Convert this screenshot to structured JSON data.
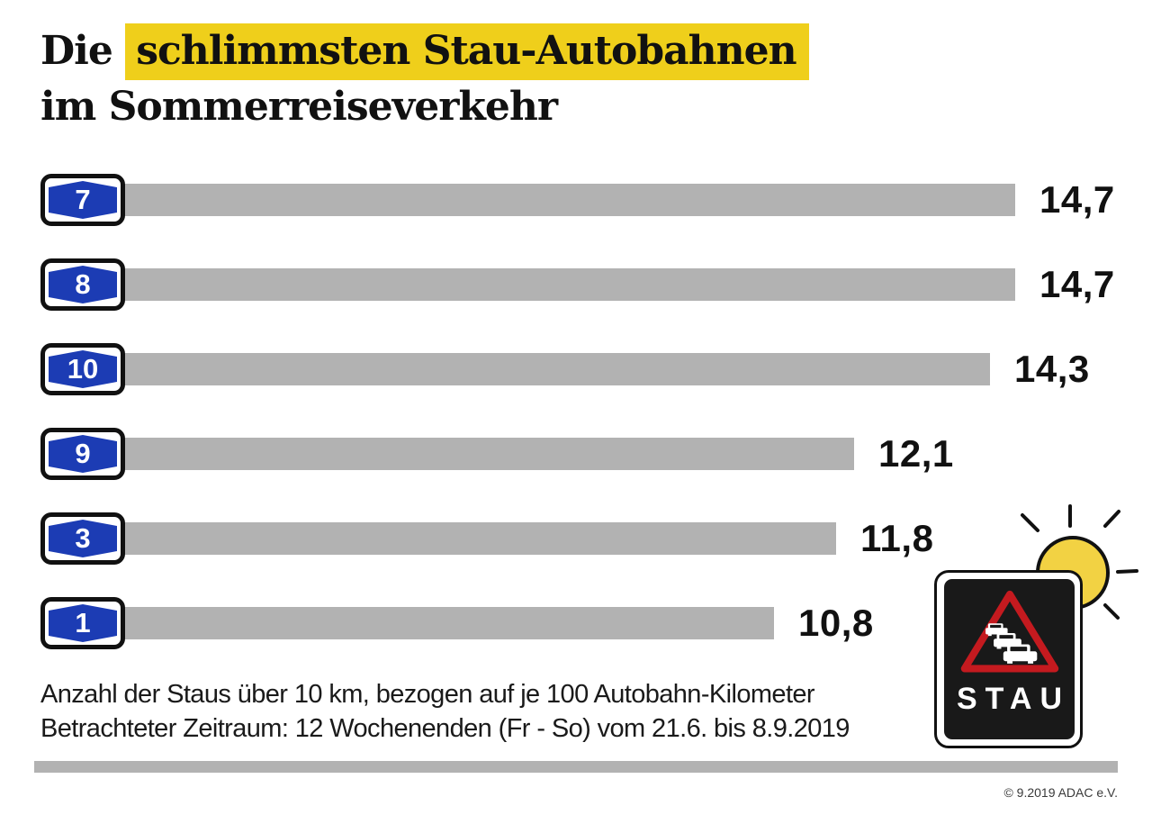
{
  "title": {
    "prefix": "Die",
    "highlight": "schlimmsten Stau-Autobahnen",
    "line2": "im Sommerreiseverkehr"
  },
  "chart_data": {
    "type": "bar",
    "orientation": "horizontal",
    "title": "Die schlimmsten Stau-Autobahnen im Sommerreiseverkehr",
    "categories": [
      "A7",
      "A8",
      "A10",
      "A9",
      "A3",
      "A1"
    ],
    "badge_labels": [
      "7",
      "8",
      "10",
      "9",
      "3",
      "1"
    ],
    "values": [
      14.7,
      14.7,
      14.3,
      12.1,
      11.8,
      10.8
    ],
    "value_labels": [
      "14,7",
      "14,7",
      "14,3",
      "12,1",
      "11,8",
      "10,8"
    ],
    "xlim": [
      0,
      14.7
    ],
    "unit": "Staus über 10 km je 100 Autobahn-Kilometer",
    "grid": false,
    "legend": false,
    "bar_color": "#B2B2B2",
    "badge_color": "#1C3CB4"
  },
  "notes": {
    "line1": "Anzahl der Staus über 10 km, bezogen auf je 100 Autobahn-Kilometer",
    "line2": "Betrachteter Zeitraum: 12 Wochenenden (Fr - So) vom 21.6. bis 8.9.2019"
  },
  "stau_sign": {
    "label": "STAU"
  },
  "footer": {
    "copyright": "© 9.2019 ADAC e.V."
  },
  "colors": {
    "highlight_yellow": "#EFCF1B",
    "bar_gray": "#B2B2B2",
    "badge_blue": "#1C3CB4",
    "sun_yellow": "#F2D243",
    "sign_red": "#C41A1F",
    "sign_black": "#191919",
    "text_black": "#111111"
  }
}
